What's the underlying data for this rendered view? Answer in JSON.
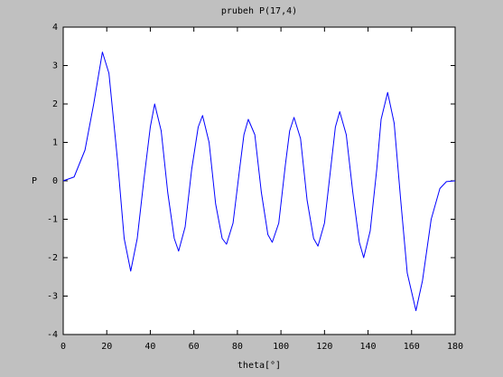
{
  "chart_data": {
    "type": "line",
    "title": "prubeh P(17,4)",
    "x_label": "theta[°]",
    "y_label": "P",
    "x": [
      0,
      5,
      10,
      14,
      18,
      21,
      25,
      28,
      31,
      34,
      37,
      40,
      42,
      45,
      48,
      51,
      53,
      56,
      59,
      62,
      64,
      67,
      70,
      73,
      75,
      78,
      81,
      83,
      85,
      88,
      91,
      94,
      96,
      99,
      102,
      104,
      106,
      109,
      112,
      115,
      117,
      120,
      123,
      125,
      127,
      130,
      133,
      136,
      138,
      141,
      144,
      146,
      149,
      152,
      155,
      158,
      162,
      165,
      169,
      173,
      176,
      180
    ],
    "series": [
      {
        "color": "#0000ff",
        "values": [
          0,
          0.1,
          0.8,
          2.0,
          3.35,
          2.8,
          0.5,
          -1.5,
          -2.35,
          -1.5,
          0,
          1.4,
          2.0,
          1.3,
          -0.3,
          -1.5,
          -1.83,
          -1.2,
          0.3,
          1.4,
          1.7,
          1.0,
          -0.6,
          -1.5,
          -1.65,
          -1.1,
          0.3,
          1.2,
          1.6,
          1.2,
          -0.3,
          -1.4,
          -1.6,
          -1.1,
          0.4,
          1.3,
          1.65,
          1.1,
          -0.5,
          -1.5,
          -1.7,
          -1.1,
          0.4,
          1.4,
          1.8,
          1.2,
          -0.3,
          -1.6,
          -2.0,
          -1.3,
          0.3,
          1.6,
          2.3,
          1.5,
          -0.5,
          -2.4,
          -3.38,
          -2.6,
          -1.0,
          -0.2,
          -0.02,
          0
        ]
      }
    ],
    "xlim": [
      0,
      180
    ],
    "xticks": [
      0,
      20,
      40,
      60,
      80,
      100,
      120,
      140,
      160,
      180
    ],
    "ylim": [
      -4,
      4
    ],
    "yticks": [
      -4,
      -3,
      -2,
      -1,
      0,
      1,
      2,
      3,
      4
    ]
  }
}
